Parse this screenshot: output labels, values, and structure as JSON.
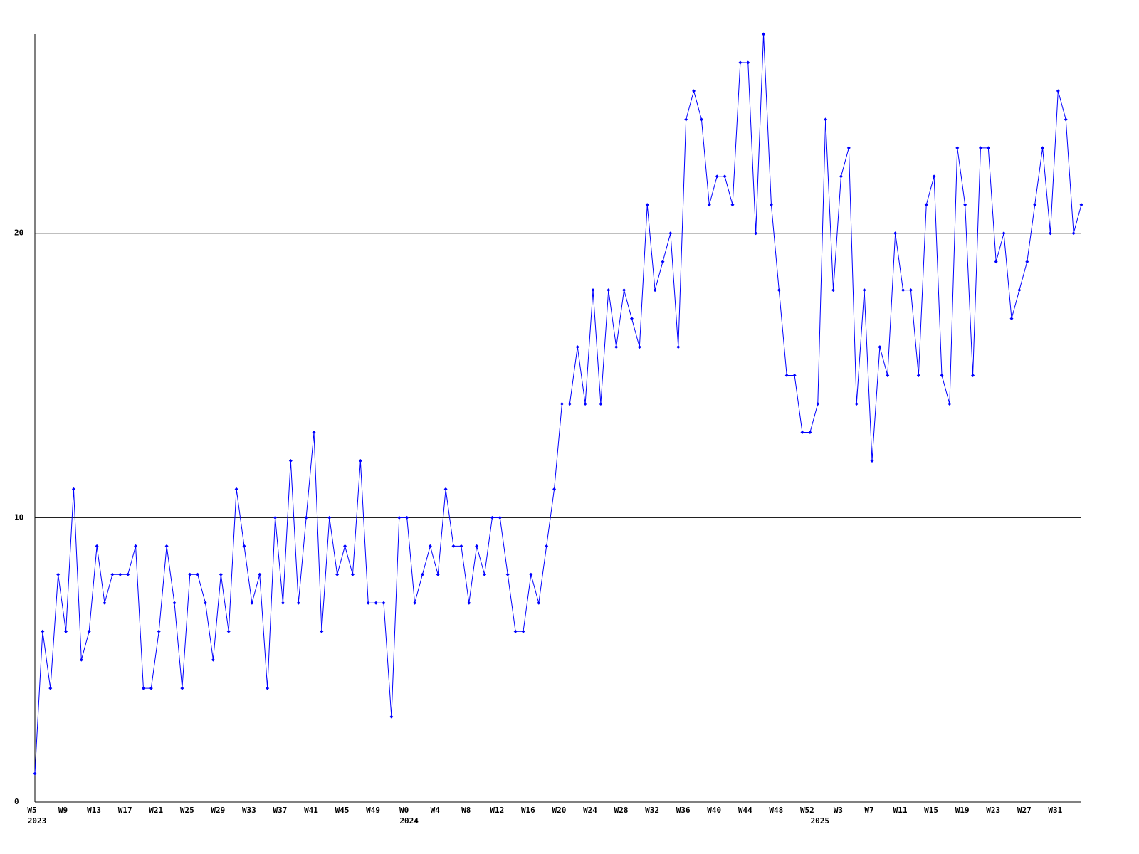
{
  "chart_data": {
    "type": "line",
    "color": "#0000ff",
    "grid": true,
    "ylim": [
      0,
      27
    ],
    "yticks": [
      0,
      10,
      20
    ],
    "categories": [
      "W5",
      null,
      null,
      null,
      "W9",
      null,
      null,
      null,
      "W13",
      null,
      null,
      null,
      "W17",
      null,
      null,
      null,
      "W21",
      null,
      null,
      null,
      "W25",
      null,
      null,
      null,
      "W29",
      null,
      null,
      null,
      "W33",
      null,
      null,
      null,
      "W37",
      null,
      null,
      null,
      "W41",
      null,
      null,
      null,
      "W45",
      null,
      null,
      null,
      "W49",
      null,
      null,
      null,
      "W0",
      null,
      null,
      null,
      "W4",
      null,
      null,
      null,
      "W8",
      null,
      null,
      null,
      "W12",
      null,
      null,
      null,
      "W16",
      null,
      null,
      null,
      "W20",
      null,
      null,
      null,
      "W24",
      null,
      null,
      null,
      "W28",
      null,
      null,
      null,
      "W32",
      null,
      null,
      null,
      "W36",
      null,
      null,
      null,
      "W40",
      null,
      null,
      null,
      "W44",
      null,
      null,
      null,
      "W48",
      null,
      null,
      null,
      "W52",
      null,
      null,
      null,
      "W3",
      null,
      null,
      null,
      "W7",
      null,
      null,
      null,
      "W11",
      null,
      null,
      null,
      "W15",
      null,
      null,
      null,
      "W19",
      null,
      null,
      null,
      "W23",
      null,
      null,
      null,
      "W27",
      null,
      null,
      null,
      "W31",
      null,
      null,
      null
    ],
    "years": [
      "2023",
      null,
      null,
      null,
      null,
      null,
      null,
      null,
      null,
      null,
      null,
      null,
      null,
      null,
      null,
      null,
      null,
      null,
      null,
      null,
      null,
      null,
      null,
      null,
      null,
      null,
      null,
      null,
      null,
      null,
      null,
      null,
      null,
      null,
      null,
      null,
      null,
      null,
      null,
      null,
      null,
      null,
      null,
      null,
      null,
      null,
      null,
      null,
      "2024",
      null,
      null,
      null,
      null,
      null,
      null,
      null,
      null,
      null,
      null,
      null,
      null,
      null,
      null,
      null,
      null,
      null,
      null,
      null,
      null,
      null,
      null,
      null,
      null,
      null,
      null,
      null,
      null,
      null,
      null,
      null,
      null,
      null,
      null,
      null,
      null,
      null,
      null,
      null,
      null,
      null,
      null,
      null,
      null,
      null,
      null,
      null,
      null,
      null,
      null,
      null,
      null,
      "2025",
      null,
      null,
      null,
      null,
      null,
      null,
      null,
      null,
      null,
      null,
      null,
      null,
      null,
      null,
      null,
      null,
      null,
      null,
      null,
      null,
      null,
      null,
      null,
      null,
      null,
      null,
      null,
      null,
      null,
      null,
      null,
      null,
      null,
      null
    ],
    "values": [
      1,
      6,
      4,
      8,
      6,
      11,
      5,
      6,
      9,
      7,
      8,
      8,
      8,
      9,
      4,
      4,
      6,
      9,
      7,
      4,
      8,
      8,
      7,
      5,
      8,
      6,
      11,
      9,
      7,
      8,
      4,
      10,
      7,
      12,
      7,
      10,
      13,
      6,
      10,
      8,
      9,
      8,
      12,
      7,
      7,
      7,
      3,
      10,
      10,
      7,
      8,
      9,
      8,
      11,
      9,
      9,
      7,
      9,
      8,
      10,
      10,
      8,
      6,
      6,
      8,
      7,
      9,
      11,
      14,
      14,
      16,
      14,
      18,
      14,
      18,
      16,
      18,
      17,
      16,
      21,
      18,
      19,
      20,
      16,
      24,
      25,
      24,
      21,
      22,
      22,
      21,
      26,
      26,
      20,
      27,
      21,
      18,
      15,
      15,
      13,
      13,
      14,
      24,
      18,
      22,
      23,
      14,
      18,
      12,
      16,
      15,
      20,
      18,
      18,
      15,
      21,
      22,
      15,
      14,
      23,
      21,
      15,
      23,
      23,
      19,
      20,
      17,
      18,
      19,
      21,
      23,
      20,
      25,
      24,
      20,
      21
    ]
  }
}
